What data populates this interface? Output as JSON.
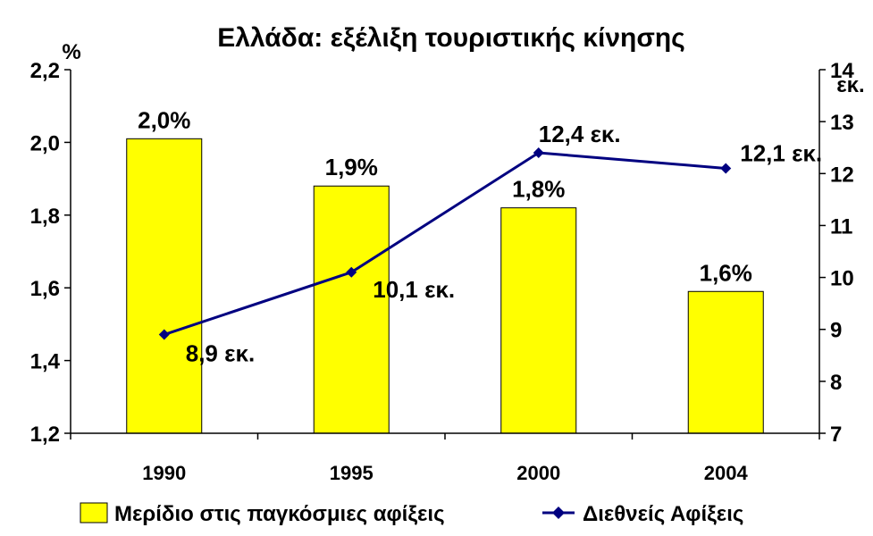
{
  "chart_data": {
    "type": "bar+line",
    "title": "Ελλάδα: εξέλιξη τουριστικής κίνησης",
    "categories": [
      "1990",
      "1995",
      "2000",
      "2004"
    ],
    "y_left": {
      "unit": "%",
      "range": [
        1.2,
        2.2
      ],
      "ticks": [
        "1,2",
        "1,4",
        "1,6",
        "1,8",
        "2,0",
        "2,2"
      ]
    },
    "y_right": {
      "unit": "εκ.",
      "range": [
        7,
        14
      ],
      "ticks": [
        "7",
        "8",
        "9",
        "10",
        "11",
        "12",
        "13",
        "14"
      ]
    },
    "series": [
      {
        "name": "Μερίδιο στις παγκόσμιες αφίξεις",
        "type": "bar",
        "axis": "left",
        "color": "#FFFF00",
        "values": [
          2.01,
          1.88,
          1.82,
          1.59
        ],
        "labels": [
          "2,0%",
          "1,9%",
          "1,8%",
          "1,6%"
        ]
      },
      {
        "name": "Διεθνείς Αφίξεις",
        "type": "line",
        "axis": "right",
        "color": "#000080",
        "values": [
          8.9,
          10.1,
          12.4,
          12.1
        ],
        "labels": [
          "8,9 εκ.",
          "10,1 εκ.",
          "12,4 εκ.",
          "12,1 εκ."
        ]
      }
    ],
    "legend": "bottom",
    "grid": false
  }
}
